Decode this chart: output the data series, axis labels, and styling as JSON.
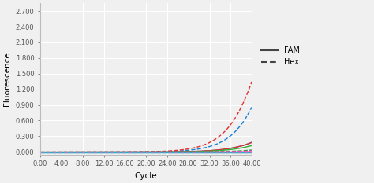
{
  "title": "",
  "xlabel": "Cycle",
  "ylabel": "Fluorescence",
  "xlim": [
    0,
    40
  ],
  "ylim": [
    -0.05,
    2.85
  ],
  "yticks": [
    0.0,
    0.3,
    0.6,
    0.9,
    1.2,
    1.5,
    1.8,
    2.1,
    2.4,
    2.7
  ],
  "xticks": [
    0.0,
    4.0,
    8.0,
    12.0,
    16.0,
    20.0,
    24.0,
    28.0,
    32.0,
    36.0,
    40.0
  ],
  "background_color": "#f0f0f0",
  "legend_entries": [
    {
      "label": "FAM",
      "linestyle": "-",
      "color": "#444444"
    },
    {
      "label": "Hex",
      "linestyle": "--",
      "color": "#444444"
    }
  ],
  "curves": [
    {
      "color": "#1a7fd4",
      "linestyle": "--",
      "midpoint": 46.0,
      "rate": 0.28,
      "plateau": 5.5,
      "baseline": -0.005
    },
    {
      "color": "#e03030",
      "linestyle": "--",
      "midpoint": 44.0,
      "rate": 0.28,
      "plateau": 5.5,
      "baseline": -0.005
    },
    {
      "color": "#1a7fd4",
      "linestyle": "-",
      "midpoint": 50.0,
      "rate": 0.25,
      "plateau": 2.5,
      "baseline": -0.005
    },
    {
      "color": "#e03030",
      "linestyle": "-",
      "midpoint": 50.5,
      "rate": 0.24,
      "plateau": 2.5,
      "baseline": -0.005
    },
    {
      "color": "#30b030",
      "linestyle": "-",
      "midpoint": 54.0,
      "rate": 0.24,
      "plateau": 3.8,
      "baseline": -0.005
    },
    {
      "color": "#30b030",
      "linestyle": "--",
      "midpoint": 56.5,
      "rate": 0.24,
      "plateau": 2.2,
      "baseline": -0.005
    },
    {
      "color": "#9933cc",
      "linestyle": "--",
      "midpoint": 58.5,
      "rate": 0.24,
      "plateau": 2.0,
      "baseline": -0.005
    },
    {
      "color": "#ff69b4",
      "linestyle": "-",
      "midpoint": 61.0,
      "rate": 0.23,
      "plateau": 1.8,
      "baseline": -0.005
    },
    {
      "color": "#00bbbb",
      "linestyle": "-",
      "midpoint": 80.0,
      "rate": 0.2,
      "plateau": 0.12,
      "baseline": -0.005
    },
    {
      "color": "#8888cc",
      "linestyle": "--",
      "midpoint": 80.0,
      "rate": 0.2,
      "plateau": 0.1,
      "baseline": -0.005
    }
  ]
}
